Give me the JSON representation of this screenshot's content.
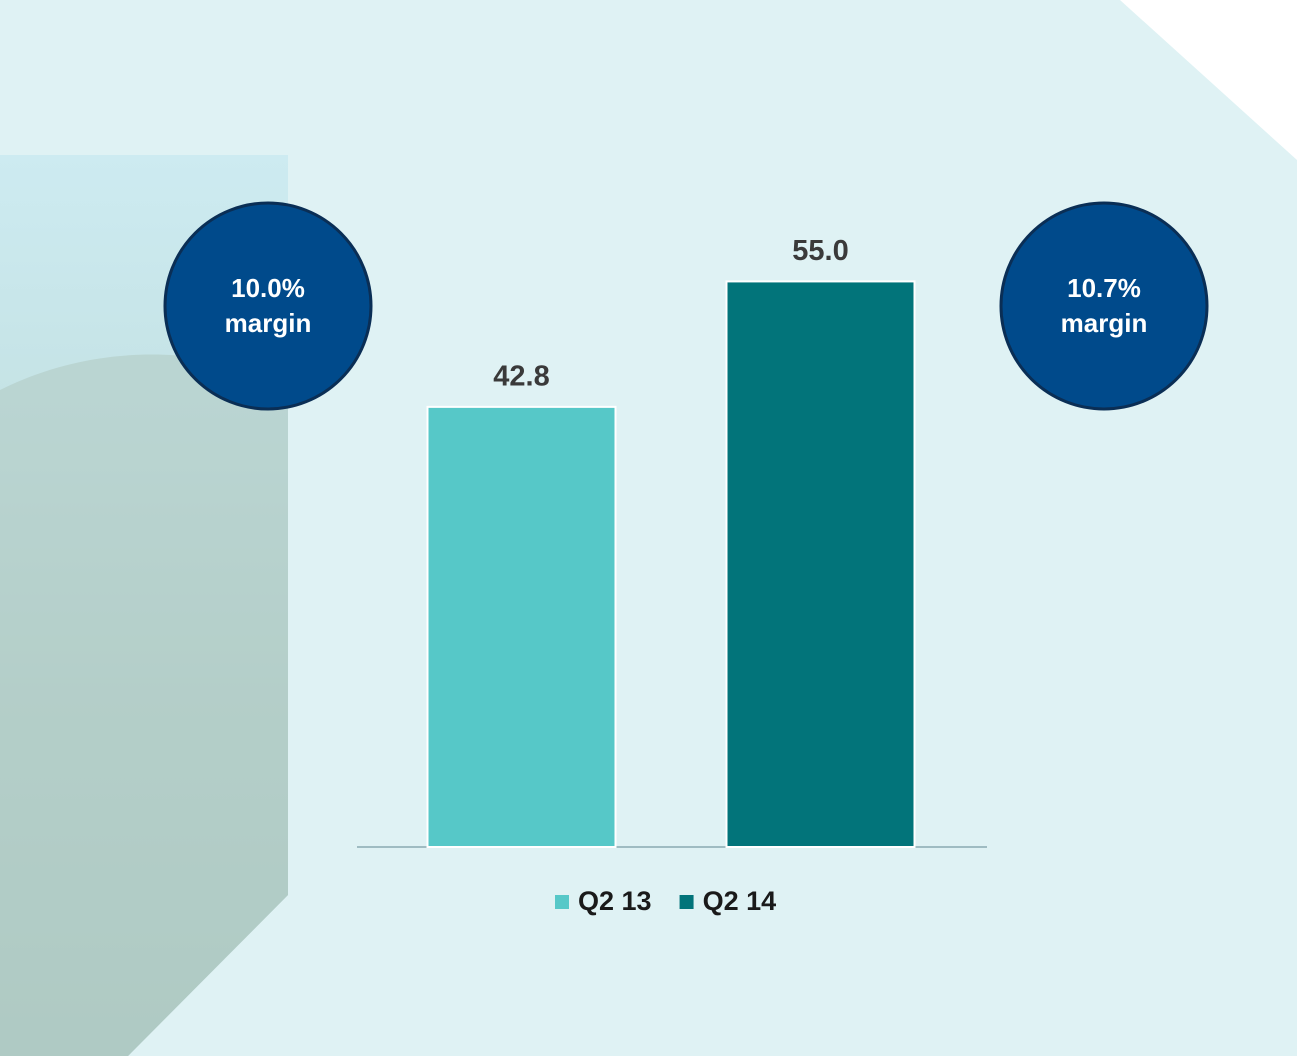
{
  "chart_data": {
    "type": "bar",
    "categories": [
      null
    ],
    "series": [
      {
        "name": "Q2 13",
        "color": "#56c8c8",
        "values": [
          42.8
        ],
        "value_labels": [
          "42.8"
        ]
      },
      {
        "name": "Q2 14",
        "color": "#02747a",
        "values": [
          55.0
        ],
        "value_labels": [
          "55.0"
        ]
      }
    ],
    "ylim": [
      0,
      60
    ],
    "annotations": [
      {
        "lines": [
          "10.0%",
          "margin"
        ]
      },
      {
        "lines": [
          "10.7%",
          "margin"
        ]
      }
    ]
  }
}
